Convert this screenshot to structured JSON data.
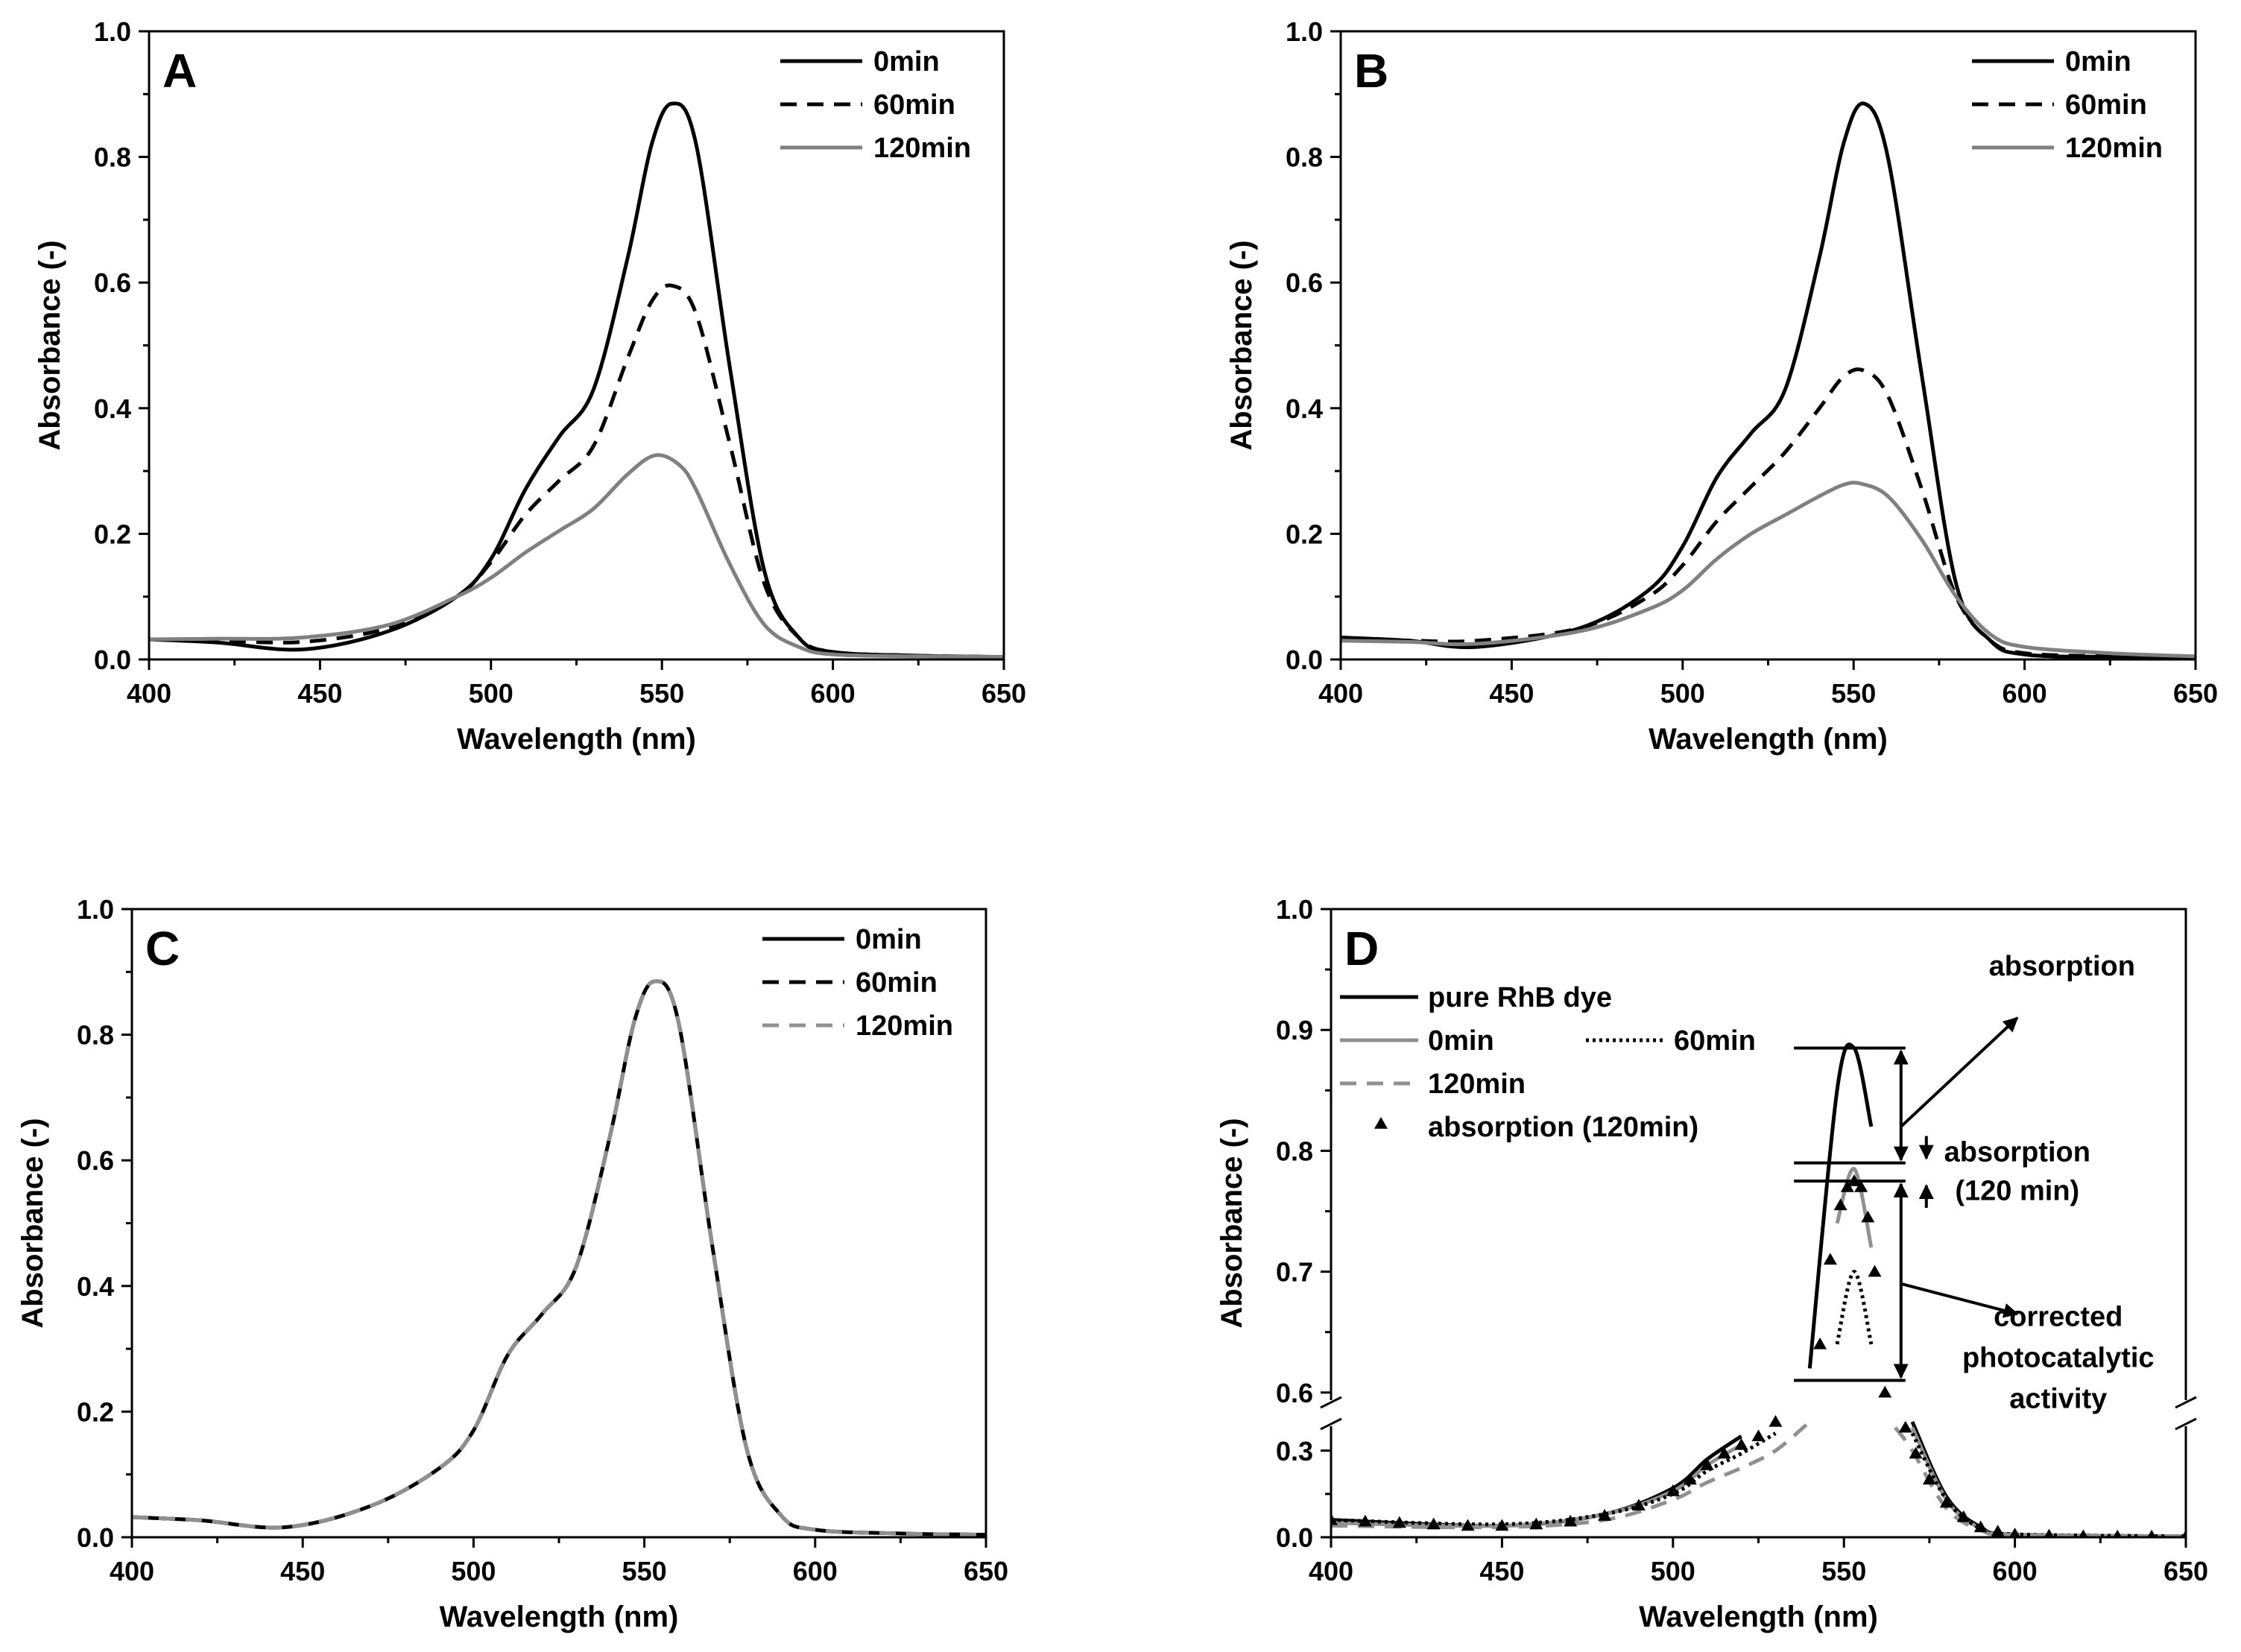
{
  "chart_data": [
    {
      "type": "line",
      "panel_label": "A",
      "xlabel": "Wavelength (nm)",
      "ylabel": "Absorbance (-)",
      "xlim": [
        400,
        650
      ],
      "ylim": [
        0.0,
        1.0
      ],
      "xticks": [
        "400",
        "450",
        "500",
        "550",
        "600",
        "650"
      ],
      "yticks": [
        "0.0",
        "0.2",
        "0.4",
        "0.6",
        "0.8",
        "1.0"
      ],
      "legend_position": "top-right",
      "series": [
        {
          "name": "0min",
          "style": "solid",
          "color": "#000000",
          "x": [
            400,
            420,
            445,
            470,
            490,
            500,
            510,
            520,
            530,
            540,
            547,
            553,
            560,
            570,
            580,
            590,
            600,
            625,
            650
          ],
          "y": [
            0.032,
            0.027,
            0.016,
            0.045,
            0.1,
            0.16,
            0.27,
            0.355,
            0.43,
            0.64,
            0.82,
            0.885,
            0.82,
            0.46,
            0.14,
            0.035,
            0.012,
            0.006,
            0.004
          ]
        },
        {
          "name": "60min",
          "style": "dashed",
          "color": "#000000",
          "x": [
            400,
            420,
            445,
            470,
            490,
            500,
            510,
            520,
            530,
            540,
            547,
            553,
            560,
            570,
            580,
            590,
            600,
            625,
            650
          ],
          "y": [
            0.032,
            0.03,
            0.028,
            0.05,
            0.1,
            0.155,
            0.23,
            0.285,
            0.34,
            0.48,
            0.57,
            0.595,
            0.55,
            0.34,
            0.12,
            0.035,
            0.012,
            0.006,
            0.004
          ]
        },
        {
          "name": "120min",
          "style": "solid",
          "color": "#808080",
          "x": [
            400,
            420,
            445,
            470,
            490,
            500,
            510,
            520,
            530,
            540,
            548,
            555,
            560,
            570,
            580,
            590,
            600,
            625,
            650
          ],
          "y": [
            0.032,
            0.033,
            0.035,
            0.055,
            0.1,
            0.13,
            0.17,
            0.205,
            0.24,
            0.295,
            0.325,
            0.31,
            0.27,
            0.15,
            0.055,
            0.02,
            0.008,
            0.005,
            0.004
          ]
        }
      ]
    },
    {
      "type": "line",
      "panel_label": "B",
      "xlabel": "Wavelength (nm)",
      "ylabel": "Absorbance (-)",
      "xlim": [
        400,
        650
      ],
      "ylim": [
        0.0,
        1.0
      ],
      "xticks": [
        "400",
        "450",
        "500",
        "550",
        "600",
        "650"
      ],
      "yticks": [
        "0.0",
        "0.2",
        "0.4",
        "0.6",
        "0.8",
        "1.0"
      ],
      "legend_position": "top-right",
      "series": [
        {
          "name": "0min",
          "style": "solid",
          "color": "#000000",
          "x": [
            400,
            420,
            440,
            470,
            490,
            500,
            510,
            520,
            530,
            540,
            547,
            553,
            560,
            570,
            580,
            590,
            600,
            625,
            650
          ],
          "y": [
            0.035,
            0.03,
            0.02,
            0.05,
            0.11,
            0.18,
            0.29,
            0.36,
            0.43,
            0.64,
            0.82,
            0.885,
            0.8,
            0.45,
            0.12,
            0.03,
            0.008,
            0.004,
            0.003
          ]
        },
        {
          "name": "60min",
          "style": "dashed",
          "color": "#000000",
          "x": [
            400,
            420,
            440,
            470,
            490,
            500,
            510,
            520,
            530,
            540,
            547,
            553,
            560,
            570,
            580,
            590,
            600,
            625,
            650
          ],
          "y": [
            0.032,
            0.03,
            0.03,
            0.05,
            0.1,
            0.15,
            0.22,
            0.275,
            0.33,
            0.4,
            0.45,
            0.46,
            0.42,
            0.27,
            0.1,
            0.03,
            0.01,
            0.005,
            0.003
          ]
        },
        {
          "name": "120min",
          "style": "solid",
          "color": "#808080",
          "x": [
            400,
            420,
            440,
            470,
            490,
            500,
            510,
            520,
            530,
            540,
            547,
            552,
            560,
            570,
            580,
            590,
            600,
            625,
            650
          ],
          "y": [
            0.03,
            0.028,
            0.025,
            0.045,
            0.08,
            0.11,
            0.16,
            0.2,
            0.23,
            0.26,
            0.278,
            0.28,
            0.26,
            0.19,
            0.1,
            0.04,
            0.02,
            0.01,
            0.005
          ]
        }
      ]
    },
    {
      "type": "line",
      "panel_label": "C",
      "xlabel": "Wavelength (nm)",
      "ylabel": "Absorbance (-)",
      "xlim": [
        400,
        650
      ],
      "ylim": [
        0.0,
        1.0
      ],
      "xticks": [
        "400",
        "450",
        "500",
        "550",
        "600",
        "650"
      ],
      "yticks": [
        "0.0",
        "0.2",
        "0.4",
        "0.6",
        "0.8",
        "1.0"
      ],
      "legend_position": "top-right",
      "series": [
        {
          "name": "0min",
          "style": "solid",
          "color": "#000000",
          "x": [
            400,
            420,
            445,
            470,
            490,
            500,
            510,
            520,
            530,
            540,
            547,
            553,
            560,
            570,
            580,
            590,
            600,
            625,
            650
          ],
          "y": [
            0.032,
            0.027,
            0.016,
            0.05,
            0.11,
            0.17,
            0.29,
            0.355,
            0.43,
            0.64,
            0.82,
            0.885,
            0.82,
            0.46,
            0.14,
            0.035,
            0.012,
            0.006,
            0.004
          ]
        },
        {
          "name": "60min",
          "style": "dashed",
          "color": "#000000",
          "x": [
            400,
            420,
            445,
            470,
            490,
            500,
            510,
            520,
            530,
            540,
            547,
            553,
            560,
            570,
            580,
            590,
            600,
            625,
            650
          ],
          "y": [
            0.032,
            0.027,
            0.016,
            0.05,
            0.11,
            0.17,
            0.29,
            0.355,
            0.43,
            0.64,
            0.82,
            0.885,
            0.82,
            0.46,
            0.14,
            0.035,
            0.012,
            0.006,
            0.004
          ]
        },
        {
          "name": "120min",
          "style": "dashed",
          "color": "#909090",
          "x": [
            400,
            420,
            445,
            470,
            490,
            500,
            510,
            520,
            530,
            540,
            547,
            553,
            560,
            570,
            580,
            590,
            600,
            625,
            650
          ],
          "y": [
            0.032,
            0.027,
            0.016,
            0.05,
            0.11,
            0.17,
            0.29,
            0.355,
            0.43,
            0.64,
            0.82,
            0.885,
            0.82,
            0.46,
            0.14,
            0.035,
            0.012,
            0.006,
            0.004
          ]
        }
      ]
    },
    {
      "type": "line",
      "panel_label": "D",
      "xlabel": "Wavelength (nm)",
      "ylabel": "Absorbance (-)",
      "xlim": [
        400,
        650
      ],
      "ylim_lower": [
        0.0,
        0.4
      ],
      "ylim_upper": [
        0.59,
        1.0
      ],
      "y_axis_break": true,
      "xticks": [
        "400",
        "450",
        "500",
        "550",
        "600",
        "650"
      ],
      "yticks_lower": [
        "0.0",
        "0.3"
      ],
      "yticks_upper": [
        "0.6",
        "0.7",
        "0.8",
        "0.9",
        "1.0"
      ],
      "legend_position": "top-left",
      "series": [
        {
          "name": "pure RhB dye",
          "style": "solid",
          "color": "#000000",
          "x": [
            400,
            450,
            480,
            500,
            510,
            520,
            530,
            540,
            548,
            553,
            558,
            565,
            570,
            580,
            590,
            600,
            650
          ],
          "y": [
            0.06,
            0.04,
            0.08,
            0.17,
            0.27,
            0.35,
            0.45,
            0.62,
            0.85,
            0.885,
            0.82,
            0.55,
            0.4,
            0.14,
            0.035,
            0.01,
            0.003
          ]
        },
        {
          "name": "0min",
          "style": "solid",
          "color": "#909090",
          "x": [
            400,
            450,
            480,
            500,
            510,
            520,
            530,
            540,
            548,
            553,
            558,
            565,
            570,
            580,
            590,
            600,
            650
          ],
          "y": [
            0.05,
            0.04,
            0.08,
            0.16,
            0.25,
            0.32,
            0.41,
            0.55,
            0.74,
            0.785,
            0.72,
            0.5,
            0.38,
            0.13,
            0.03,
            0.01,
            0.003
          ]
        },
        {
          "name": "60min",
          "style": "dotted",
          "color": "#000000",
          "x": [
            400,
            450,
            480,
            500,
            510,
            520,
            530,
            540,
            548,
            553,
            558,
            565,
            570,
            580,
            590,
            600,
            650
          ],
          "y": [
            0.06,
            0.045,
            0.08,
            0.15,
            0.23,
            0.29,
            0.36,
            0.47,
            0.64,
            0.7,
            0.64,
            0.46,
            0.36,
            0.13,
            0.03,
            0.01,
            0.003
          ]
        },
        {
          "name": "120min",
          "style": "dashed",
          "color": "#909090",
          "x": [
            400,
            450,
            480,
            500,
            510,
            520,
            530,
            540,
            548,
            553,
            558,
            565,
            570,
            580,
            590,
            600,
            650
          ],
          "y": [
            0.04,
            0.035,
            0.06,
            0.13,
            0.19,
            0.24,
            0.3,
            0.4,
            0.55,
            0.61,
            0.55,
            0.38,
            0.3,
            0.1,
            0.025,
            0.008,
            0.003
          ]
        },
        {
          "name": "absorption (120min)",
          "style": "markers",
          "marker": "triangle",
          "color": "#000000",
          "x": [
            400,
            410,
            420,
            430,
            440,
            450,
            460,
            470,
            480,
            490,
            500,
            505,
            510,
            515,
            520,
            525,
            530,
            535,
            540,
            543,
            546,
            549,
            551,
            553,
            555,
            557,
            559,
            562,
            565,
            568,
            571,
            575,
            580,
            585,
            590,
            595,
            600,
            610,
            620,
            630,
            640,
            650
          ],
          "y": [
            0.06,
            0.055,
            0.05,
            0.045,
            0.04,
            0.04,
            0.045,
            0.055,
            0.075,
            0.11,
            0.16,
            0.2,
            0.25,
            0.29,
            0.32,
            0.35,
            0.4,
            0.46,
            0.56,
            0.64,
            0.71,
            0.755,
            0.77,
            0.775,
            0.77,
            0.745,
            0.7,
            0.6,
            0.48,
            0.38,
            0.29,
            0.2,
            0.12,
            0.07,
            0.035,
            0.02,
            0.01,
            0.006,
            0.004,
            0.003,
            0.003,
            0.003
          ]
        }
      ],
      "annotations": {
        "levels": [
          0.885,
          0.79,
          0.775,
          0.61
        ],
        "bracket_range": [
          538,
          568
        ],
        "labels": {
          "absorption": "absorption",
          "absorption_120_line1": "absorption",
          "absorption_120_line2": "(120 min)",
          "corrected_line1": "corrected",
          "corrected_line2": "photocatalytic",
          "corrected_line3": "activity"
        }
      }
    }
  ]
}
